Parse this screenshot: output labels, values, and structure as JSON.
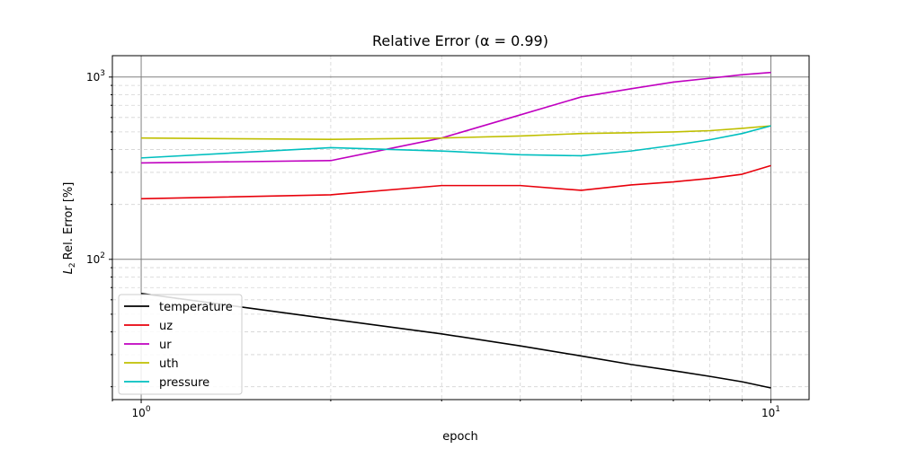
{
  "chart_data": {
    "type": "line",
    "title": "Relative Error (α = 0.99)",
    "xlabel": "epoch",
    "ylabel": "Rel. Error [%]",
    "ylabel_prefix": "L",
    "ylabel_subscript": "2",
    "x_scale": "log",
    "y_scale": "log",
    "xlim": [
      0.9,
      11.5
    ],
    "ylim": [
      17,
      1310
    ],
    "grid": true,
    "legend_position": "lower-left",
    "x": [
      1,
      2,
      3,
      4,
      5,
      6,
      7,
      8,
      9,
      10
    ],
    "x_ticks": [
      {
        "value": 1,
        "base": "10",
        "exp": "0"
      },
      {
        "value": 10,
        "base": "10",
        "exp": "1"
      }
    ],
    "y_ticks": [
      {
        "value": 100,
        "base": "10",
        "exp": "2"
      },
      {
        "value": 1000,
        "base": "10",
        "exp": "3"
      }
    ],
    "series": [
      {
        "name": "temperature",
        "color": "#000000",
        "values": [
          65,
          47,
          39,
          33.5,
          29.5,
          26.5,
          24.5,
          22.8,
          21.3,
          19.7
        ]
      },
      {
        "name": "uz",
        "color": "#e8000b",
        "values": [
          215,
          226,
          254,
          254,
          239,
          256,
          266,
          278,
          293,
          327
        ]
      },
      {
        "name": "ur",
        "color": "#c000c0",
        "values": [
          338,
          348,
          463,
          620,
          778,
          863,
          938,
          985,
          1030,
          1060
        ]
      },
      {
        "name": "uth",
        "color": "#bfbf00",
        "values": [
          463,
          455,
          463,
          475,
          490,
          495,
          500,
          508,
          523,
          540
        ]
      },
      {
        "name": "pressure",
        "color": "#00bfbf",
        "values": [
          360,
          410,
          393,
          375,
          370,
          393,
          422,
          453,
          490,
          540
        ]
      }
    ]
  }
}
